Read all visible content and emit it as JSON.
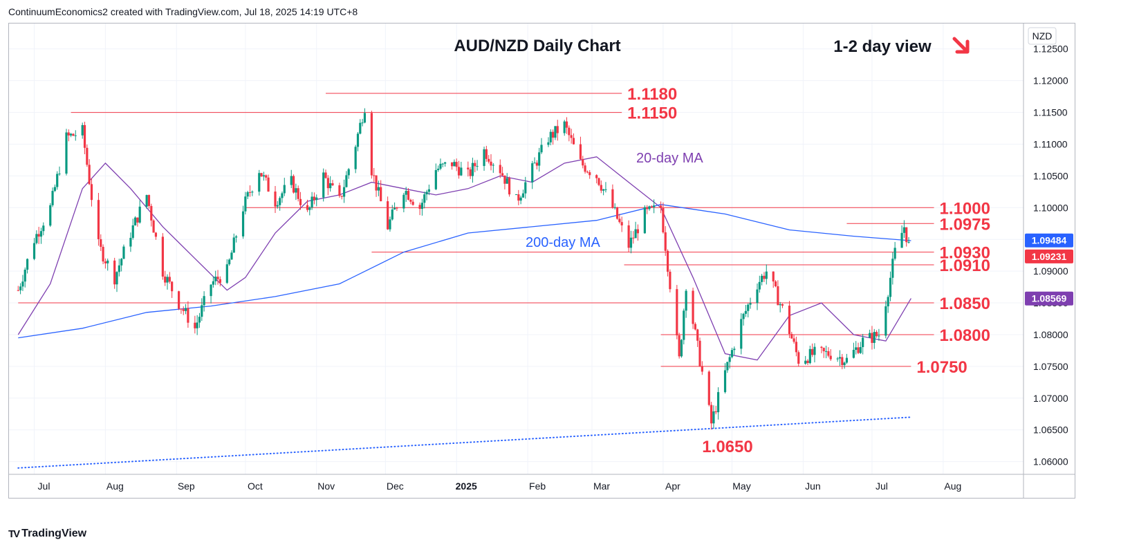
{
  "header": {
    "attribution": "ContinuumEconomics2 created with TradingView.com, Jul 18, 2025 14:19 UTC+8"
  },
  "footer": {
    "brand": "TradingView"
  },
  "colors": {
    "up": "#089981",
    "down": "#f23645",
    "level": "#f23645",
    "ma20": "#7e3fb0",
    "ma200": "#2962ff",
    "text": "#131722"
  },
  "chart_data": {
    "type": "candlestick",
    "title": "AUD/NZD Daily Chart",
    "subtitle": "1-2 day view",
    "view_arrow": "down-right",
    "currency": "NZD",
    "ylim": [
      1.058,
      1.129
    ],
    "y_ticks": [
      "1.12500",
      "1.12000",
      "1.11500",
      "1.11000",
      "1.10500",
      "1.10000",
      "1.09500",
      "1.09000",
      "1.08500",
      "1.08000",
      "1.07500",
      "1.07000",
      "1.06500",
      "1.06000"
    ],
    "x_ticks": [
      {
        "label": "Jul",
        "date": "2024-07-01"
      },
      {
        "label": "Aug",
        "date": "2024-08-01"
      },
      {
        "label": "Sep",
        "date": "2024-09-01"
      },
      {
        "label": "Oct",
        "date": "2024-10-01"
      },
      {
        "label": "Nov",
        "date": "2024-11-01"
      },
      {
        "label": "Dec",
        "date": "2024-12-01"
      },
      {
        "label": "2025",
        "date": "2025-01-01",
        "bold": true
      },
      {
        "label": "Feb",
        "date": "2025-02-01"
      },
      {
        "label": "Mar",
        "date": "2025-03-01"
      },
      {
        "label": "Apr",
        "date": "2025-04-01"
      },
      {
        "label": "May",
        "date": "2025-05-01"
      },
      {
        "label": "Jun",
        "date": "2025-06-01"
      },
      {
        "label": "Jul",
        "date": "2025-07-01"
      },
      {
        "label": "Aug",
        "date": "2025-08-01"
      }
    ],
    "price_tags": [
      {
        "label": "1.09484",
        "value": 1.09484,
        "series": "200-day MA"
      },
      {
        "label": "1.09231",
        "value": 1.09231,
        "series": "last"
      },
      {
        "label": "1.08569",
        "value": 1.08569,
        "series": "20-day MA"
      }
    ],
    "levels": [
      {
        "label": "1.1180",
        "value": 1.118,
        "from": "2024-11-05",
        "to": "2025-03-14"
      },
      {
        "label": "1.1150",
        "value": 1.115,
        "from": "2024-07-17",
        "to": "2025-03-14"
      },
      {
        "label": "1.1000",
        "value": 1.1,
        "from": "2024-10-01",
        "to": "2025-07-28"
      },
      {
        "label": "1.0975",
        "value": 1.0975,
        "from": "2025-06-20",
        "to": "2025-07-28"
      },
      {
        "label": "1.0930",
        "value": 1.093,
        "from": "2024-11-25",
        "to": "2025-07-28"
      },
      {
        "label": "1.0910",
        "value": 1.091,
        "from": "2025-03-15",
        "to": "2025-07-28"
      },
      {
        "label": "1.0850",
        "value": 1.085,
        "from": "2024-06-24",
        "to": "2025-07-28"
      },
      {
        "label": "1.0800",
        "value": 1.08,
        "from": "2025-03-31",
        "to": "2025-07-28"
      },
      {
        "label": "1.0750",
        "value": 1.075,
        "from": "2025-03-31",
        "to": "2025-07-18"
      }
    ],
    "low_label": {
      "label": "1.0650",
      "value": 1.065,
      "date": "2025-04-22"
    },
    "trendline": {
      "from": {
        "date": "2024-06-24",
        "value": 1.059
      },
      "to": {
        "date": "2025-07-18",
        "value": 1.067
      },
      "style": "dotted"
    },
    "ma_labels": {
      "ma20": "20-day MA",
      "ma200": "200-day MA"
    },
    "series": [
      {
        "name": "AUD/NZD",
        "kind": "ohlc_path",
        "points": [
          [
            "2024-06-24",
            1.087
          ],
          [
            "2024-07-01",
            1.095
          ],
          [
            "2024-07-08",
            1.1
          ],
          [
            "2024-07-15",
            1.111
          ],
          [
            "2024-07-22",
            1.112
          ],
          [
            "2024-07-29",
            1.094
          ],
          [
            "2024-08-05",
            1.089
          ],
          [
            "2024-08-12",
            1.096
          ],
          [
            "2024-08-19",
            1.102
          ],
          [
            "2024-08-26",
            1.09
          ],
          [
            "2024-09-02",
            1.085
          ],
          [
            "2024-09-09",
            1.081
          ],
          [
            "2024-09-16",
            1.088
          ],
          [
            "2024-09-23",
            1.09
          ],
          [
            "2024-09-30",
            1.1
          ],
          [
            "2024-10-07",
            1.106
          ],
          [
            "2024-10-14",
            1.101
          ],
          [
            "2024-10-21",
            1.104
          ],
          [
            "2024-10-28",
            1.099
          ],
          [
            "2024-11-04",
            1.105
          ],
          [
            "2024-11-11",
            1.101
          ],
          [
            "2024-11-18",
            1.11
          ],
          [
            "2024-11-22",
            1.116
          ],
          [
            "2024-11-25",
            1.106
          ],
          [
            "2024-12-02",
            1.097
          ],
          [
            "2024-12-09",
            1.103
          ],
          [
            "2024-12-16",
            1.1
          ],
          [
            "2024-12-23",
            1.106
          ],
          [
            "2024-12-30",
            1.107
          ],
          [
            "2025-01-06",
            1.105
          ],
          [
            "2025-01-13",
            1.109
          ],
          [
            "2025-01-20",
            1.106
          ],
          [
            "2025-01-27",
            1.101
          ],
          [
            "2025-02-03",
            1.106
          ],
          [
            "2025-02-10",
            1.111
          ],
          [
            "2025-02-17",
            1.113
          ],
          [
            "2025-02-24",
            1.107
          ],
          [
            "2025-03-03",
            1.105
          ],
          [
            "2025-03-10",
            1.1
          ],
          [
            "2025-03-17",
            1.094
          ],
          [
            "2025-03-24",
            1.099
          ],
          [
            "2025-03-31",
            1.1
          ],
          [
            "2025-04-04",
            1.088
          ],
          [
            "2025-04-08",
            1.076
          ],
          [
            "2025-04-11",
            1.088
          ],
          [
            "2025-04-17",
            1.076
          ],
          [
            "2025-04-22",
            1.066
          ],
          [
            "2025-04-28",
            1.074
          ],
          [
            "2025-05-05",
            1.082
          ],
          [
            "2025-05-12",
            1.088
          ],
          [
            "2025-05-16",
            1.09
          ],
          [
            "2025-05-23",
            1.084
          ],
          [
            "2025-05-30",
            1.076
          ],
          [
            "2025-06-06",
            1.077
          ],
          [
            "2025-06-13",
            1.077
          ],
          [
            "2025-06-20",
            1.076
          ],
          [
            "2025-06-27",
            1.079
          ],
          [
            "2025-07-04",
            1.08
          ],
          [
            "2025-07-08",
            1.087
          ],
          [
            "2025-07-11",
            1.093
          ],
          [
            "2025-07-15",
            1.097
          ],
          [
            "2025-07-17",
            1.094
          ],
          [
            "2025-07-18",
            1.0923
          ]
        ]
      },
      {
        "name": "20-day MA",
        "kind": "line",
        "color": "#7e3fb0",
        "points": [
          [
            "2024-06-24",
            1.08
          ],
          [
            "2024-07-08",
            1.088
          ],
          [
            "2024-07-22",
            1.103
          ],
          [
            "2024-08-01",
            1.107
          ],
          [
            "2024-08-12",
            1.103
          ],
          [
            "2024-08-26",
            1.097
          ],
          [
            "2024-09-09",
            1.092
          ],
          [
            "2024-09-23",
            1.087
          ],
          [
            "2024-10-01",
            1.089
          ],
          [
            "2024-10-14",
            1.096
          ],
          [
            "2024-10-28",
            1.101
          ],
          [
            "2024-11-11",
            1.102
          ],
          [
            "2024-11-25",
            1.104
          ],
          [
            "2024-12-09",
            1.103
          ],
          [
            "2024-12-23",
            1.102
          ],
          [
            "2025-01-06",
            1.103
          ],
          [
            "2025-01-20",
            1.105
          ],
          [
            "2025-02-03",
            1.104
          ],
          [
            "2025-02-17",
            1.107
          ],
          [
            "2025-03-03",
            1.108
          ],
          [
            "2025-03-17",
            1.104
          ],
          [
            "2025-03-31",
            1.1
          ],
          [
            "2025-04-14",
            1.089
          ],
          [
            "2025-04-28",
            1.077
          ],
          [
            "2025-05-12",
            1.076
          ],
          [
            "2025-05-26",
            1.083
          ],
          [
            "2025-06-09",
            1.085
          ],
          [
            "2025-06-23",
            1.08
          ],
          [
            "2025-07-07",
            1.079
          ],
          [
            "2025-07-18",
            1.0857
          ]
        ]
      },
      {
        "name": "200-day MA",
        "kind": "line",
        "color": "#2962ff",
        "points": [
          [
            "2024-06-24",
            1.0795
          ],
          [
            "2024-07-22",
            1.081
          ],
          [
            "2024-08-19",
            1.0835
          ],
          [
            "2024-09-16",
            1.0845
          ],
          [
            "2024-10-14",
            1.086
          ],
          [
            "2024-11-11",
            1.088
          ],
          [
            "2024-12-09",
            1.093
          ],
          [
            "2025-01-06",
            1.096
          ],
          [
            "2025-02-03",
            1.097
          ],
          [
            "2025-03-03",
            1.098
          ],
          [
            "2025-03-31",
            1.1005
          ],
          [
            "2025-04-28",
            1.099
          ],
          [
            "2025-05-26",
            1.0965
          ],
          [
            "2025-06-23",
            1.0955
          ],
          [
            "2025-07-18",
            1.0948
          ]
        ]
      }
    ]
  }
}
